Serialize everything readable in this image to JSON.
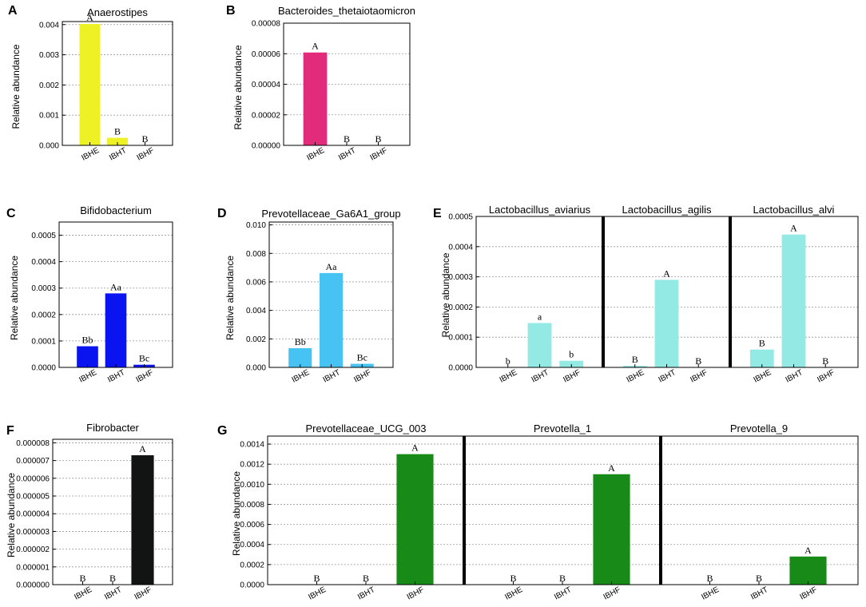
{
  "chart_data": [
    {
      "id": "A",
      "type": "bar",
      "panel_letter": "A",
      "ylabel": "Relative abundance",
      "yticks": [
        "0.000",
        "0.001",
        "0.002",
        "0.003",
        "0.004"
      ],
      "ylim": [
        0,
        0.0041
      ],
      "grid": true,
      "facets": [
        {
          "title": "Anaerostipes",
          "categories": [
            "IBHE",
            "IBHT",
            "IBHF"
          ],
          "values": [
            0.00402,
            0.00025,
            0.0
          ],
          "labels": [
            "A",
            "B",
            "B"
          ],
          "color": "#eef224"
        }
      ]
    },
    {
      "id": "B",
      "type": "bar",
      "panel_letter": "B",
      "ylabel": "Relative abundance",
      "yticks": [
        "0.00000",
        "0.00002",
        "0.00004",
        "0.00006",
        "0.00008"
      ],
      "ylim": [
        0,
        8e-05
      ],
      "grid": true,
      "facets": [
        {
          "title": "Bacteroides_thetaiotaomicron",
          "categories": [
            "IBHE",
            "IBHT",
            "IBHF"
          ],
          "values": [
            6.08e-05,
            0.0,
            0.0
          ],
          "labels": [
            "A",
            "B",
            "B"
          ],
          "color": "#e32b7c"
        }
      ]
    },
    {
      "id": "C",
      "type": "bar",
      "panel_letter": "C",
      "ylabel": "Relative abundance",
      "yticks": [
        "0.0000",
        "0.0001",
        "0.0002",
        "0.0003",
        "0.0004",
        "0.0005"
      ],
      "ylim": [
        0,
        0.00055
      ],
      "grid": true,
      "facets": [
        {
          "title": "Bifidobacterium",
          "categories": [
            "IBHE",
            "IBHT",
            "IBHF"
          ],
          "values": [
            8e-05,
            0.00028,
            1e-05
          ],
          "labels": [
            "Bb",
            "Aa",
            "Bc"
          ],
          "color": "#0a14f0"
        }
      ]
    },
    {
      "id": "D",
      "type": "bar",
      "panel_letter": "D",
      "ylabel": "Relative abundance",
      "yticks": [
        "0.000",
        "0.002",
        "0.004",
        "0.006",
        "0.008",
        "0.010"
      ],
      "ylim": [
        0,
        0.0102
      ],
      "grid": true,
      "facets": [
        {
          "title": "Prevotellaceae_Ga6A1_group",
          "categories": [
            "IBHE",
            "IBHT",
            "IBHF"
          ],
          "values": [
            0.00135,
            0.00662,
            0.00025
          ],
          "labels": [
            "Bb",
            "Aa",
            "Bc"
          ],
          "color": "#46c3f2"
        }
      ]
    },
    {
      "id": "E",
      "type": "bar",
      "panel_letter": "E",
      "ylabel": "Relative abundance",
      "yticks": [
        "0.0000",
        "0.0001",
        "0.0002",
        "0.0003",
        "0.0004",
        "0.0005"
      ],
      "ylim": [
        0,
        0.0005
      ],
      "grid": true,
      "facets": [
        {
          "title": "Lactobacillus_aviarius",
          "categories": [
            "IBHE",
            "IBHT",
            "IBHF"
          ],
          "values": [
            0.0,
            0.000147,
            2.2e-05
          ],
          "labels": [
            "b",
            "a",
            "b"
          ],
          "color": "#93eae4"
        },
        {
          "title": "Lactobacillus_agilis",
          "categories": [
            "IBHE",
            "IBHT",
            "IBHF"
          ],
          "values": [
            5e-06,
            0.00029,
            0.0
          ],
          "labels": [
            "B",
            "A",
            "B"
          ],
          "color": "#93eae4"
        },
        {
          "title": "Lactobacillus_alvi",
          "categories": [
            "IBHE",
            "IBHT",
            "IBHF"
          ],
          "values": [
            5.9e-05,
            0.00044,
            0.0
          ],
          "labels": [
            "B",
            "A",
            "B"
          ],
          "color": "#93eae4"
        }
      ]
    },
    {
      "id": "F",
      "type": "bar",
      "panel_letter": "F",
      "ylabel": "Relative abundance",
      "yticks": [
        "0.000000",
        "0.000001",
        "0.000002",
        "0.000003",
        "0.000004",
        "0.000005",
        "0.000006",
        "0.000007",
        "0.000008"
      ],
      "ylim": [
        0,
        8.2e-06
      ],
      "grid": true,
      "facets": [
        {
          "title": "Fibrobacter",
          "categories": [
            "IBHE",
            "IBHT",
            "IBHF"
          ],
          "values": [
            0.0,
            0.0,
            7.3e-06
          ],
          "labels": [
            "B",
            "B",
            "A"
          ],
          "color": "#111412"
        }
      ]
    },
    {
      "id": "G",
      "type": "bar",
      "panel_letter": "G",
      "ylabel": "Relative abundance",
      "yticks": [
        "0.0000",
        "0.0002",
        "0.0004",
        "0.0006",
        "0.0008",
        "0.0010",
        "0.0012",
        "0.0014"
      ],
      "ylim": [
        0,
        0.00148
      ],
      "grid": true,
      "facets": [
        {
          "title": "Prevotellaceae_UCG_003",
          "categories": [
            "IBHE",
            "IBHT",
            "IBHF"
          ],
          "values": [
            0.0,
            0.0,
            0.0013
          ],
          "labels": [
            "B",
            "B",
            "A"
          ],
          "color": "#178a17"
        },
        {
          "title": "Prevotella_1",
          "categories": [
            "IBHE",
            "IBHT",
            "IBHF"
          ],
          "values": [
            0.0,
            0.0,
            0.0011
          ],
          "labels": [
            "B",
            "B",
            "A"
          ],
          "color": "#178a17"
        },
        {
          "title": "Prevotella_9",
          "categories": [
            "IBHE",
            "IBHT",
            "IBHF"
          ],
          "values": [
            0.0,
            0.0,
            0.00028
          ],
          "labels": [
            "B",
            "B",
            "A"
          ],
          "color": "#178a17"
        }
      ]
    }
  ]
}
